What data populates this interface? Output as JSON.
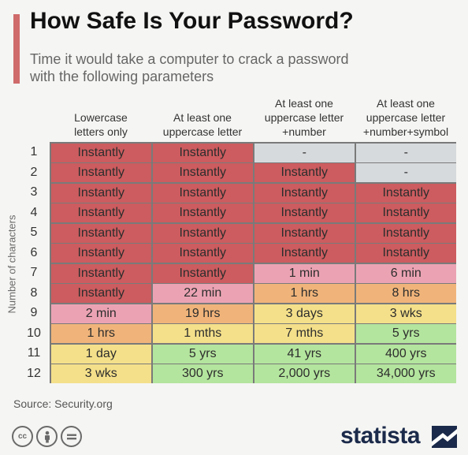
{
  "title": "How Safe Is Your Password?",
  "subtitle": "Time it would take a computer to crack a password with the following parameters",
  "source": "Source: Security.org",
  "brand": "statista",
  "colors": {
    "red": "#cc5c5f",
    "pink": "#eba3b3",
    "orange": "#f0b47a",
    "yellow": "#f4e08a",
    "green": "#b4e59e",
    "gray": "#d7dadd",
    "accent": "#cf6b6b"
  },
  "chart_data": {
    "type": "table",
    "title": "How Safe Is Your Password?",
    "subtitle": "Time it would take a computer to crack a password with the following parameters",
    "ylabel": "Number of characters",
    "columns": [
      "Lowercase letters only",
      "At least one uppercase letter",
      "At least one uppercase letter +number",
      "At least one uppercase letter +number+symbol"
    ],
    "column_lines": [
      [
        "Lowercase",
        "letters only"
      ],
      [
        "At least one",
        "uppercase letter"
      ],
      [
        "At least one",
        "uppercase letter",
        "+number"
      ],
      [
        "At least one",
        "uppercase letter",
        "+number+symbol"
      ]
    ],
    "rows": [
      "1",
      "2",
      "3",
      "4",
      "5",
      "6",
      "7",
      "8",
      "9",
      "10",
      "11",
      "12"
    ],
    "values": [
      [
        "Instantly",
        "Instantly",
        "-",
        "-"
      ],
      [
        "Instantly",
        "Instantly",
        "Instantly",
        "-"
      ],
      [
        "Instantly",
        "Instantly",
        "Instantly",
        "Instantly"
      ],
      [
        "Instantly",
        "Instantly",
        "Instantly",
        "Instantly"
      ],
      [
        "Instantly",
        "Instantly",
        "Instantly",
        "Instantly"
      ],
      [
        "Instantly",
        "Instantly",
        "Instantly",
        "Instantly"
      ],
      [
        "Instantly",
        "Instantly",
        "1 min",
        "6 min"
      ],
      [
        "Instantly",
        "22 min",
        "1 hrs",
        "8 hrs"
      ],
      [
        "2 min",
        "19 hrs",
        "3 days",
        "3 wks"
      ],
      [
        "1 hrs",
        "1 mths",
        "7 mths",
        "5 yrs"
      ],
      [
        "1 day",
        "5 yrs",
        "41 yrs",
        "400 yrs"
      ],
      [
        "3 wks",
        "300 yrs",
        "2,000 yrs",
        "34,000 yrs"
      ]
    ],
    "cell_colors": [
      [
        "red",
        "red",
        "gray",
        "gray"
      ],
      [
        "red",
        "red",
        "red",
        "gray"
      ],
      [
        "red",
        "red",
        "red",
        "red"
      ],
      [
        "red",
        "red",
        "red",
        "red"
      ],
      [
        "red",
        "red",
        "red",
        "red"
      ],
      [
        "red",
        "red",
        "red",
        "red"
      ],
      [
        "red",
        "red",
        "pink",
        "pink"
      ],
      [
        "red",
        "pink",
        "orange",
        "orange"
      ],
      [
        "pink",
        "orange",
        "yellow",
        "yellow"
      ],
      [
        "orange",
        "yellow",
        "yellow",
        "green"
      ],
      [
        "yellow",
        "green",
        "green",
        "green"
      ],
      [
        "yellow",
        "green",
        "green",
        "green"
      ]
    ]
  }
}
